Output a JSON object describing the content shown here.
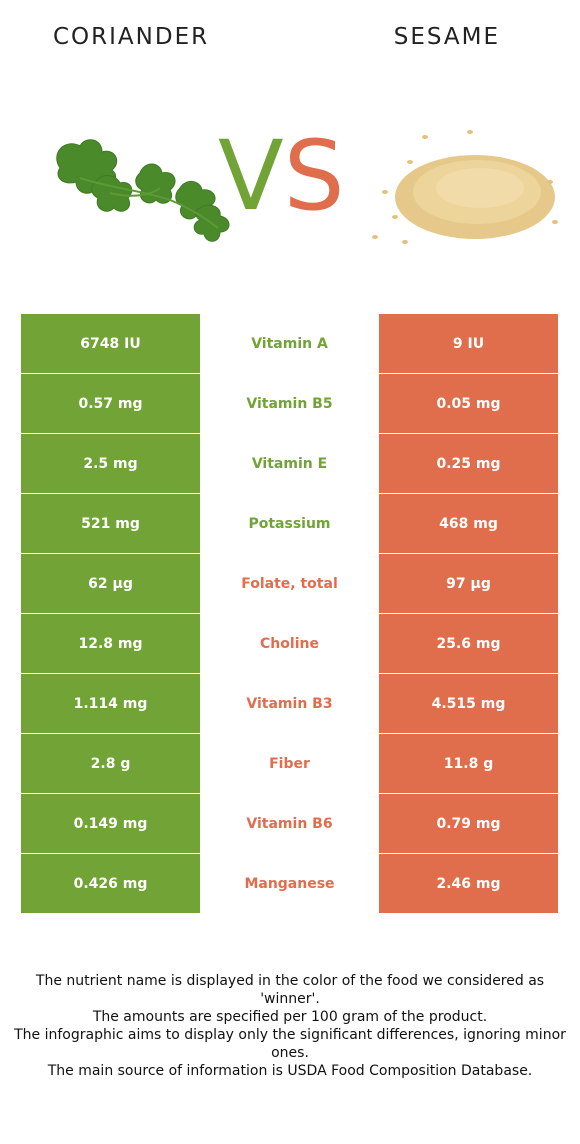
{
  "header": {
    "left_food": "CORIANDER",
    "right_food": "SESAME",
    "vs_v": "V",
    "vs_s": "S"
  },
  "colors": {
    "left_food": "#71a337",
    "right_food": "#e06d4c"
  },
  "rows": [
    {
      "left": "6748 IU",
      "nutrient": "Vitamin A",
      "right": "9 IU",
      "winner": "left"
    },
    {
      "left": "0.57 mg",
      "nutrient": "Vitamin B5",
      "right": "0.05 mg",
      "winner": "left"
    },
    {
      "left": "2.5 mg",
      "nutrient": "Vitamin E",
      "right": "0.25 mg",
      "winner": "left"
    },
    {
      "left": "521 mg",
      "nutrient": "Potassium",
      "right": "468 mg",
      "winner": "left"
    },
    {
      "left": "62 µg",
      "nutrient": "Folate, total",
      "right": "97 µg",
      "winner": "right"
    },
    {
      "left": "12.8 mg",
      "nutrient": "Choline",
      "right": "25.6 mg",
      "winner": "right"
    },
    {
      "left": "1.114 mg",
      "nutrient": "Vitamin B3",
      "right": "4.515 mg",
      "winner": "right"
    },
    {
      "left": "2.8 g",
      "nutrient": "Fiber",
      "right": "11.8 g",
      "winner": "right"
    },
    {
      "left": "0.149 mg",
      "nutrient": "Vitamin B6",
      "right": "0.79 mg",
      "winner": "right"
    },
    {
      "left": "0.426 mg",
      "nutrient": "Manganese",
      "right": "2.46 mg",
      "winner": "right"
    }
  ],
  "footer": {
    "line1": "The nutrient name is displayed in the color of the food we considered as 'winner'.",
    "line2": "The amounts are specified per 100 gram of the product.",
    "line3": "The infographic aims to display only the significant differences, ignoring minor ones.",
    "line4": "The main source of information is USDA Food Composition Database."
  }
}
